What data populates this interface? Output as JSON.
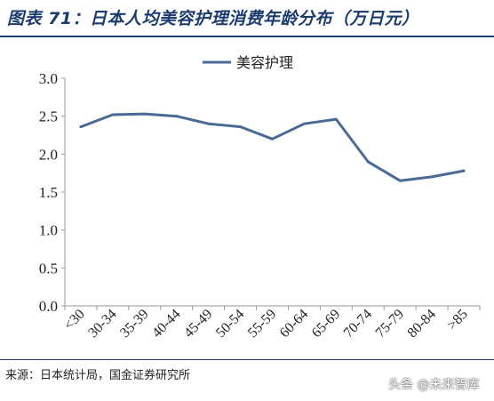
{
  "header": {
    "title": "图表 71：日本人均美容护理消费年龄分布（万日元）"
  },
  "chart_data": {
    "type": "line",
    "title": "",
    "xlabel": "",
    "ylabel": "",
    "categories": [
      "<30",
      "30-34",
      "35-39",
      "40-44",
      "45-49",
      "50-54",
      "55-59",
      "60-64",
      "65-69",
      "70-74",
      "75-79",
      "80-84",
      ">85"
    ],
    "series": [
      {
        "name": "美容护理",
        "values": [
          2.36,
          2.52,
          2.53,
          2.5,
          2.4,
          2.36,
          2.2,
          2.4,
          2.46,
          1.9,
          1.65,
          1.7,
          1.78
        ]
      }
    ],
    "ylim": [
      0,
      3.0
    ],
    "yticks": [
      "0.0",
      "0.5",
      "1.0",
      "1.5",
      "2.0",
      "2.5",
      "3.0"
    ],
    "grid": false,
    "legend_position": "top-center",
    "colors": {
      "line": "#4a6a96",
      "axis": "#9a9a9a",
      "text": "#222222"
    }
  },
  "footer": {
    "source": "来源：日本统计局，国金证券研究所",
    "watermark": "头条 @未来智库"
  }
}
